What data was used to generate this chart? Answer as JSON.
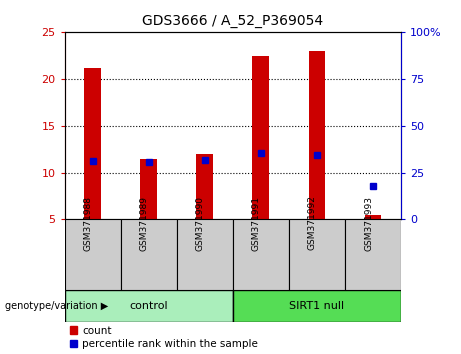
{
  "title": "GDS3666 / A_52_P369054",
  "samples": [
    "GSM371988",
    "GSM371989",
    "GSM371990",
    "GSM371991",
    "GSM371992",
    "GSM371993"
  ],
  "counts": [
    21.1,
    11.5,
    12.0,
    22.4,
    23.0,
    5.5
  ],
  "percentiles_left": [
    11.2,
    11.1,
    11.3,
    12.1,
    11.9,
    8.6
  ],
  "ylim_left": [
    5,
    25
  ],
  "ylim_right": [
    0,
    100
  ],
  "yticks_left": [
    5,
    10,
    15,
    20,
    25
  ],
  "yticks_right": [
    0,
    25,
    50,
    75,
    100
  ],
  "ytick_right_labels": [
    "0",
    "25",
    "50",
    "75",
    "100%"
  ],
  "bar_color": "#cc0000",
  "dot_color": "#0000cc",
  "bar_bottom": 5,
  "bar_width": 0.3,
  "groups": [
    {
      "label": "control",
      "indices": [
        0,
        1,
        2
      ],
      "color": "#aaeebb"
    },
    {
      "label": "SIRT1 null",
      "indices": [
        3,
        4,
        5
      ],
      "color": "#55dd55"
    }
  ],
  "group_row_label": "genotype/variation ▶",
  "legend_count_label": "count",
  "legend_pct_label": "percentile rank within the sample",
  "background_color": "#ffffff",
  "plot_bg_color": "#ffffff",
  "tick_label_color_left": "#cc0000",
  "tick_label_color_right": "#0000cc",
  "sample_box_color": "#cccccc"
}
